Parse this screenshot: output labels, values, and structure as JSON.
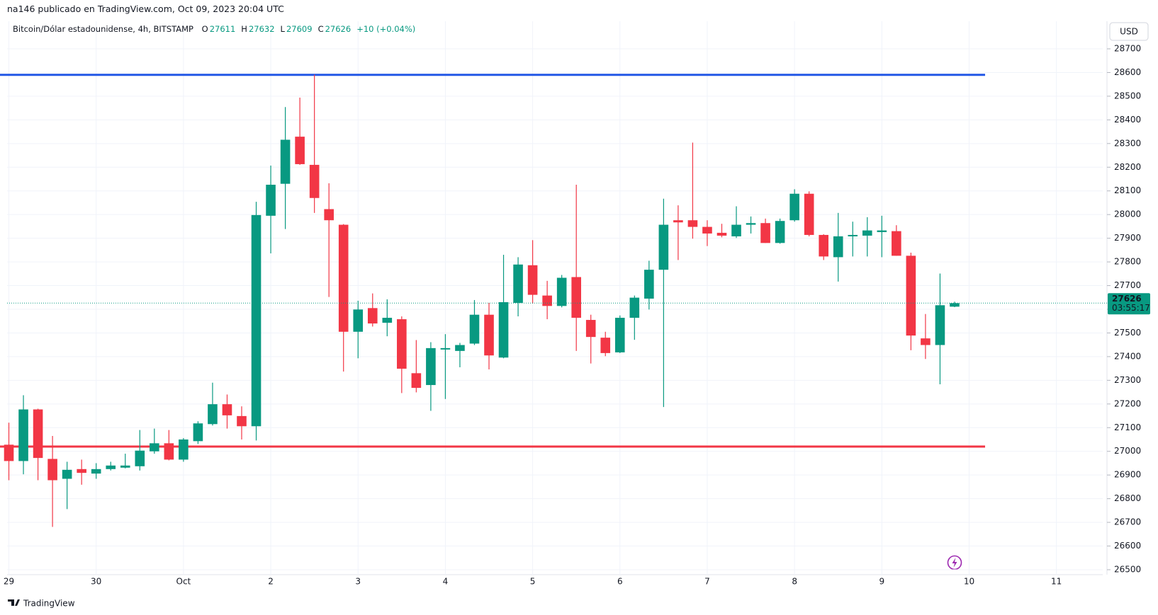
{
  "header": {
    "text": "na146 publicado en TradingView.com, Oct 09, 2023 20:04 UTC"
  },
  "footer": {
    "brand": "TradingView"
  },
  "chart_data": {
    "type": "candlestick",
    "symbol": "Bitcoin/Dólar estadounidense, 4h, BITSTAMP",
    "ohlc_letters": [
      "O",
      "H",
      "L",
      "C"
    ],
    "change_label": "+10 (+0.04%)",
    "currency": "USD",
    "countdown": "03:55:17",
    "up_color": "#089981",
    "down_color": "#f23645",
    "x_labels": [
      "29",
      "30",
      "Oct",
      "2",
      "3",
      "4",
      "5",
      "6",
      "7",
      "8",
      "9",
      "10",
      "11"
    ],
    "candles": [
      {
        "o": 27028,
        "h": 27121,
        "l": 26878,
        "c": 26959
      },
      {
        "o": 26959,
        "h": 27237,
        "l": 26903,
        "c": 27177
      },
      {
        "o": 27177,
        "h": 27180,
        "l": 26878,
        "c": 26972
      },
      {
        "o": 26968,
        "h": 27065,
        "l": 26681,
        "c": 26878
      },
      {
        "o": 26884,
        "h": 26956,
        "l": 26756,
        "c": 26922
      },
      {
        "o": 26925,
        "h": 26965,
        "l": 26859,
        "c": 26909
      },
      {
        "o": 26906,
        "h": 26950,
        "l": 26884,
        "c": 26925
      },
      {
        "o": 26925,
        "h": 26956,
        "l": 26919,
        "c": 26940
      },
      {
        "o": 26931,
        "h": 26990,
        "l": 26928,
        "c": 26940
      },
      {
        "o": 26937,
        "h": 27090,
        "l": 26919,
        "c": 27003
      },
      {
        "o": 27000,
        "h": 27096,
        "l": 26990,
        "c": 27034
      },
      {
        "o": 27034,
        "h": 27090,
        "l": 26962,
        "c": 26965
      },
      {
        "o": 26965,
        "h": 27056,
        "l": 26956,
        "c": 27050
      },
      {
        "o": 27043,
        "h": 27127,
        "l": 27031,
        "c": 27118
      },
      {
        "o": 27115,
        "h": 27290,
        "l": 27109,
        "c": 27199
      },
      {
        "o": 27199,
        "h": 27240,
        "l": 27096,
        "c": 27152
      },
      {
        "o": 27149,
        "h": 27190,
        "l": 27050,
        "c": 27106
      },
      {
        "o": 27106,
        "h": 28054,
        "l": 27046,
        "c": 27998
      },
      {
        "o": 27995,
        "h": 28207,
        "l": 27836,
        "c": 28126
      },
      {
        "o": 28130,
        "h": 28454,
        "l": 27939,
        "c": 28316
      },
      {
        "o": 28329,
        "h": 28494,
        "l": 28210,
        "c": 28213
      },
      {
        "o": 28210,
        "h": 28591,
        "l": 28007,
        "c": 28070
      },
      {
        "o": 28023,
        "h": 28132,
        "l": 27652,
        "c": 27976
      },
      {
        "o": 27957,
        "h": 27960,
        "l": 27337,
        "c": 27505
      },
      {
        "o": 27505,
        "h": 27636,
        "l": 27393,
        "c": 27599
      },
      {
        "o": 27605,
        "h": 27667,
        "l": 27527,
        "c": 27540
      },
      {
        "o": 27543,
        "h": 27642,
        "l": 27486,
        "c": 27564
      },
      {
        "o": 27558,
        "h": 27570,
        "l": 27246,
        "c": 27349
      },
      {
        "o": 27330,
        "h": 27470,
        "l": 27249,
        "c": 27268
      },
      {
        "o": 27280,
        "h": 27461,
        "l": 27171,
        "c": 27436
      },
      {
        "o": 27430,
        "h": 27495,
        "l": 27221,
        "c": 27436
      },
      {
        "o": 27424,
        "h": 27458,
        "l": 27355,
        "c": 27449
      },
      {
        "o": 27455,
        "h": 27639,
        "l": 27449,
        "c": 27577
      },
      {
        "o": 27577,
        "h": 27627,
        "l": 27346,
        "c": 27405
      },
      {
        "o": 27396,
        "h": 27830,
        "l": 27393,
        "c": 27630
      },
      {
        "o": 27627,
        "h": 27820,
        "l": 27570,
        "c": 27789
      },
      {
        "o": 27786,
        "h": 27892,
        "l": 27624,
        "c": 27661
      },
      {
        "o": 27658,
        "h": 27720,
        "l": 27558,
        "c": 27614
      },
      {
        "o": 27614,
        "h": 27745,
        "l": 27608,
        "c": 27733
      },
      {
        "o": 27736,
        "h": 28126,
        "l": 27424,
        "c": 27564
      },
      {
        "o": 27555,
        "h": 27577,
        "l": 27371,
        "c": 27483
      },
      {
        "o": 27480,
        "h": 27505,
        "l": 27402,
        "c": 27415
      },
      {
        "o": 27418,
        "h": 27574,
        "l": 27415,
        "c": 27564
      },
      {
        "o": 27564,
        "h": 27658,
        "l": 27471,
        "c": 27649
      },
      {
        "o": 27645,
        "h": 27805,
        "l": 27599,
        "c": 27767
      },
      {
        "o": 27767,
        "h": 28067,
        "l": 27187,
        "c": 27957
      },
      {
        "o": 27976,
        "h": 28039,
        "l": 27808,
        "c": 27967
      },
      {
        "o": 27976,
        "h": 28304,
        "l": 27898,
        "c": 27948
      },
      {
        "o": 27948,
        "h": 27976,
        "l": 27867,
        "c": 27920
      },
      {
        "o": 27923,
        "h": 27961,
        "l": 27904,
        "c": 27911
      },
      {
        "o": 27908,
        "h": 28035,
        "l": 27901,
        "c": 27957
      },
      {
        "o": 27957,
        "h": 27992,
        "l": 27920,
        "c": 27964
      },
      {
        "o": 27964,
        "h": 27983,
        "l": 27880,
        "c": 27880
      },
      {
        "o": 27880,
        "h": 27983,
        "l": 27877,
        "c": 27973
      },
      {
        "o": 27976,
        "h": 28107,
        "l": 27970,
        "c": 28088
      },
      {
        "o": 28088,
        "h": 28098,
        "l": 27908,
        "c": 27914
      },
      {
        "o": 27914,
        "h": 27917,
        "l": 27808,
        "c": 27823
      },
      {
        "o": 27820,
        "h": 28007,
        "l": 27717,
        "c": 27908
      },
      {
        "o": 27908,
        "h": 27970,
        "l": 27823,
        "c": 27914
      },
      {
        "o": 27911,
        "h": 27989,
        "l": 27823,
        "c": 27933
      },
      {
        "o": 27926,
        "h": 27995,
        "l": 27820,
        "c": 27933
      },
      {
        "o": 27930,
        "h": 27955,
        "l": 27826,
        "c": 27826
      },
      {
        "o": 27826,
        "h": 27839,
        "l": 27427,
        "c": 27489
      },
      {
        "o": 27477,
        "h": 27580,
        "l": 27390,
        "c": 27449
      },
      {
        "o": 27449,
        "h": 27751,
        "l": 27283,
        "c": 27617
      },
      {
        "o": 27611,
        "h": 27632,
        "l": 27609,
        "c": 27626
      }
    ],
    "hlines": [
      {
        "value": 28590,
        "color": "#2257e6"
      },
      {
        "value": 27020,
        "color": "#f23645"
      }
    ],
    "ylim": [
      26500,
      28700
    ],
    "yticks": [
      26500,
      26600,
      26700,
      26800,
      26900,
      27000,
      27100,
      27200,
      27300,
      27400,
      27500,
      27600,
      27700,
      27800,
      27900,
      28000,
      28100,
      28200,
      28300,
      28400,
      28500,
      28600,
      28700
    ],
    "grid": true
  }
}
